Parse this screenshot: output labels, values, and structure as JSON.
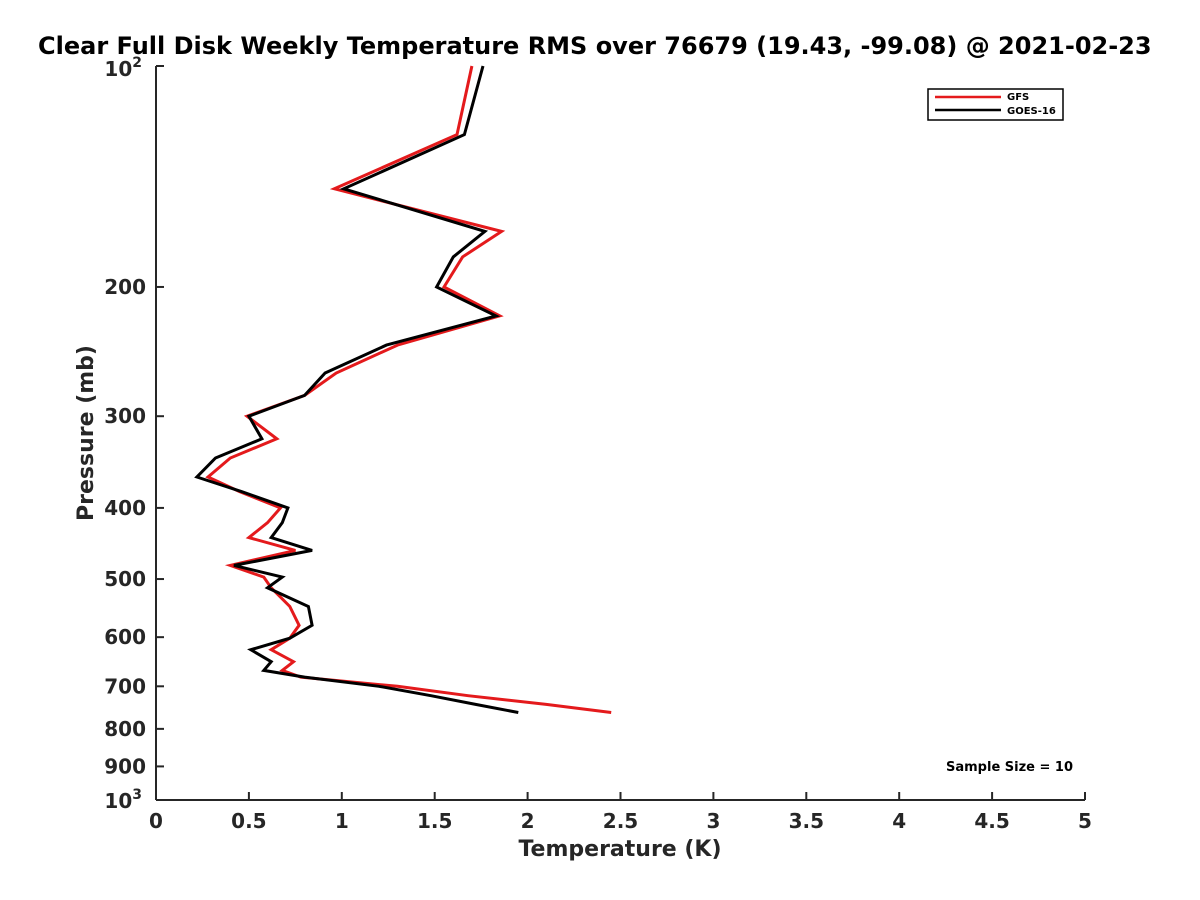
{
  "chart_data": {
    "type": "line",
    "title": "Clear Full Disk Weekly Temperature RMS over 76679 (19.43, -99.08) @ 2021-02-23",
    "xlabel": "Temperature (K)",
    "ylabel": "Pressure (mb)",
    "xlim": [
      0,
      5
    ],
    "ylim": [
      100,
      1000
    ],
    "y_scale": "log",
    "y_reversed": true,
    "grid": false,
    "legend_position": "top-right",
    "x_ticks": [
      "0",
      "0.5",
      "1",
      "1.5",
      "2",
      "2.5",
      "3",
      "3.5",
      "4",
      "4.5",
      "5"
    ],
    "y_ticks": [
      {
        "value": 100,
        "base": "10",
        "exp": "2"
      },
      {
        "value": 200,
        "label": "200"
      },
      {
        "value": 300,
        "label": "300"
      },
      {
        "value": 400,
        "label": "400"
      },
      {
        "value": 500,
        "label": "500"
      },
      {
        "value": 600,
        "label": "600"
      },
      {
        "value": 700,
        "label": "700"
      },
      {
        "value": 800,
        "label": "800"
      },
      {
        "value": 900,
        "label": "900"
      },
      {
        "value": 1000,
        "base": "10",
        "exp": "3"
      }
    ],
    "annotation": "Sample Size = 10",
    "series": [
      {
        "name": "GFS",
        "color": "#e41a1c",
        "points": [
          [
            1.7,
            100
          ],
          [
            1.62,
            124
          ],
          [
            0.96,
            147
          ],
          [
            1.86,
            168
          ],
          [
            1.65,
            182
          ],
          [
            1.55,
            200
          ],
          [
            1.85,
            219
          ],
          [
            1.3,
            240
          ],
          [
            0.97,
            262
          ],
          [
            0.8,
            281
          ],
          [
            0.49,
            300
          ],
          [
            0.65,
            322
          ],
          [
            0.4,
            342
          ],
          [
            0.28,
            363
          ],
          [
            0.45,
            380
          ],
          [
            0.67,
            400
          ],
          [
            0.6,
            419
          ],
          [
            0.5,
            439
          ],
          [
            0.75,
            457
          ],
          [
            0.4,
            479
          ],
          [
            0.58,
            497
          ],
          [
            0.62,
            514
          ],
          [
            0.72,
            545
          ],
          [
            0.77,
            578
          ],
          [
            0.72,
            602
          ],
          [
            0.62,
            624
          ],
          [
            0.74,
            648
          ],
          [
            0.68,
            666
          ],
          [
            0.78,
            680
          ],
          [
            1.3,
            700
          ],
          [
            1.68,
            721
          ],
          [
            2.1,
            741
          ],
          [
            2.45,
            760
          ]
        ]
      },
      {
        "name": "GOES-16",
        "color": "#000000",
        "points": [
          [
            1.76,
            100
          ],
          [
            1.66,
            124
          ],
          [
            1.01,
            147
          ],
          [
            1.77,
            168
          ],
          [
            1.6,
            182
          ],
          [
            1.51,
            200
          ],
          [
            1.83,
            219
          ],
          [
            1.24,
            240
          ],
          [
            0.91,
            262
          ],
          [
            0.8,
            281
          ],
          [
            0.5,
            300
          ],
          [
            0.57,
            322
          ],
          [
            0.32,
            342
          ],
          [
            0.22,
            363
          ],
          [
            0.46,
            380
          ],
          [
            0.71,
            400
          ],
          [
            0.68,
            419
          ],
          [
            0.62,
            439
          ],
          [
            0.84,
            457
          ],
          [
            0.42,
            479
          ],
          [
            0.68,
            497
          ],
          [
            0.6,
            514
          ],
          [
            0.82,
            545
          ],
          [
            0.84,
            578
          ],
          [
            0.72,
            602
          ],
          [
            0.51,
            624
          ],
          [
            0.62,
            648
          ],
          [
            0.58,
            666
          ],
          [
            0.8,
            680
          ],
          [
            1.2,
            700
          ],
          [
            1.48,
            721
          ],
          [
            1.72,
            741
          ],
          [
            1.95,
            760
          ]
        ]
      }
    ]
  }
}
